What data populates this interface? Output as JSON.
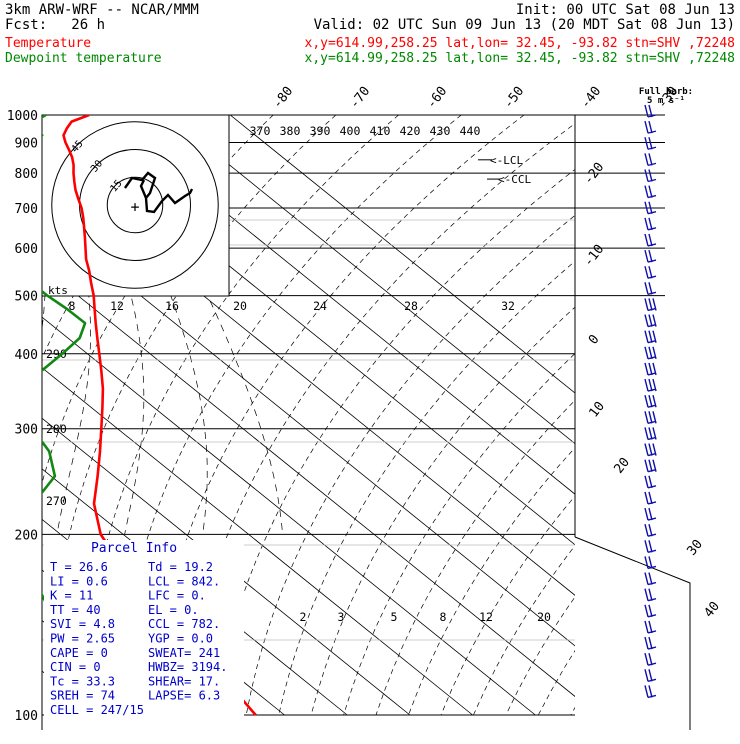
{
  "header": {
    "line1_left": "3km ARW-WRF -- NCAR/MMM",
    "line1_right": "Init: 00 UTC Sat 08 Jun 13",
    "fcst_label": "Fcst:",
    "fcst_value": "26 h",
    "valid": "Valid: 02 UTC Sun 09 Jun 13 (20 MDT Sat 08 Jun 13)"
  },
  "legend": [
    {
      "label": "Temperature",
      "info": "x,y=614.99,258.25   lat,lon= 32.45, -93.82  stn=SHV ,72248",
      "color": "#ff0000"
    },
    {
      "label": "Dewpoint temperature",
      "info": "x,y=614.99,258.25   lat,lon= 32.45, -93.82  stn=SHV ,72248",
      "color": "#008800"
    }
  ],
  "colors": {
    "temperature": "#ff0000",
    "dewpoint": "#118811",
    "info": "#0000cc",
    "barb": "#1111aa",
    "ink": "#000000"
  },
  "barb_key": {
    "line1": "Full barb:",
    "line2": "5 m s⁻¹"
  },
  "hodograph": {
    "units": "kts",
    "rings": [
      {
        "r": 15,
        "label": "15"
      },
      {
        "r": 30,
        "label": "30"
      },
      {
        "r": 45,
        "label": "45"
      }
    ]
  },
  "parcel_info": {
    "title": "Parcel Info",
    "rows": [
      [
        "T   =    26.6",
        "Td =  19.2"
      ],
      [
        "LI  =     0.6",
        "LCL =  842."
      ],
      [
        "K   =      11",
        "LFC =    0."
      ],
      [
        "TT  =      40",
        "EL  =    0."
      ],
      [
        "SVI =     4.8",
        "CCL =  782."
      ],
      [
        "PW  =    2.65",
        "YGP =  0.0"
      ],
      [
        "CAPE =      0",
        "SWEAT=  241"
      ],
      [
        "CIN  =      0",
        "HWBZ= 3194."
      ],
      [
        "Tc   =   33.3",
        "SHEAR=  17."
      ],
      [
        "SREH =     74",
        "LAPSE=  6.3"
      ],
      [
        "CELL = 247/15",
        ""
      ]
    ]
  },
  "marker_labels": {
    "ccl": "<-CCL",
    "lcl": "<-LCL"
  },
  "chart_data": {
    "type": "skew-T log-p",
    "y_axis": {
      "scale": "log-pressure",
      "range": [
        1000,
        100
      ],
      "tick_labels": [
        "100",
        "200",
        "300",
        "400",
        "500",
        "600",
        "700",
        "800",
        "900",
        "1000"
      ]
    },
    "isotherm_labels": [
      "-80",
      "-70",
      "-60",
      "-50",
      "-40",
      "-30",
      "-20",
      "-10",
      "0",
      "10",
      "20",
      "30",
      "40"
    ],
    "dry_adiabat_labels": [
      "370",
      "380",
      "390",
      "400",
      "410",
      "420",
      "430",
      "440"
    ],
    "mixing_ratio_labels": [
      "2",
      "3",
      "5",
      "8",
      "12",
      "20"
    ],
    "moist_adiabat_labels": [
      "8",
      "12",
      "16",
      "20",
      "24",
      "28",
      "32"
    ],
    "theta_labels": [
      "290",
      "280",
      "270"
    ],
    "series": [
      {
        "name": "Temperature",
        "points": [
          [
            1000,
            27.5
          ],
          [
            975,
            23.4
          ],
          [
            950,
            21.3
          ],
          [
            925,
            19.4
          ],
          [
            900,
            18.3
          ],
          [
            875,
            17.4
          ],
          [
            850,
            16.4
          ],
          [
            825,
            15.1
          ],
          [
            800,
            13.5
          ],
          [
            775,
            12.0
          ],
          [
            750,
            10.5
          ],
          [
            725,
            9.2
          ],
          [
            700,
            7.9
          ],
          [
            675,
            6.3
          ],
          [
            650,
            4.5
          ],
          [
            625,
            2.6
          ],
          [
            600,
            0.6
          ],
          [
            575,
            -1.5
          ],
          [
            550,
            -3.3
          ],
          [
            525,
            -5.4
          ],
          [
            500,
            -7.5
          ],
          [
            475,
            -10.0
          ],
          [
            450,
            -12.6
          ],
          [
            425,
            -15.3
          ],
          [
            400,
            -18.1
          ],
          [
            375,
            -21.1
          ],
          [
            350,
            -24.4
          ],
          [
            325,
            -28.3
          ],
          [
            300,
            -32.6
          ],
          [
            275,
            -37.3
          ],
          [
            250,
            -42.6
          ],
          [
            225,
            -48.6
          ],
          [
            200,
            -53.6
          ],
          [
            175,
            -56.8
          ],
          [
            150,
            -58.9
          ],
          [
            130,
            -59.8
          ],
          [
            115,
            -62.4
          ],
          [
            100,
            -64.6
          ]
        ]
      },
      {
        "name": "Dewpoint temperature",
        "points": [
          [
            1000,
            20.6
          ],
          [
            975,
            17.4
          ],
          [
            950,
            16.8
          ],
          [
            925,
            16.0
          ],
          [
            900,
            13.0
          ],
          [
            875,
            10.6
          ],
          [
            850,
            8.4
          ],
          [
            825,
            4.4
          ],
          [
            800,
            0.2
          ],
          [
            775,
            -3.5
          ],
          [
            750,
            -6.0
          ],
          [
            725,
            -6.4
          ],
          [
            700,
            -8.4
          ],
          [
            675,
            -8.9
          ],
          [
            650,
            -9.1
          ],
          [
            625,
            -9.5
          ],
          [
            600,
            -10.6
          ],
          [
            575,
            -12.5
          ],
          [
            550,
            -14.1
          ],
          [
            525,
            -14.9
          ],
          [
            500,
            -14.9
          ],
          [
            475,
            -14.4
          ],
          [
            450,
            -14.3
          ],
          [
            425,
            -18.1
          ],
          [
            400,
            -24.0
          ],
          [
            375,
            -30.6
          ],
          [
            350,
            -38.8
          ],
          [
            325,
            -43.0
          ],
          [
            300,
            -43.6
          ],
          [
            275,
            -45.4
          ],
          [
            250,
            -49.4
          ],
          [
            225,
            -58.3
          ],
          [
            200,
            -66.1
          ],
          [
            175,
            -72.0
          ],
          [
            150,
            -76.6
          ],
          [
            130,
            -81.0
          ],
          [
            115,
            -83.6
          ],
          [
            100,
            -86.5
          ]
        ]
      }
    ]
  }
}
